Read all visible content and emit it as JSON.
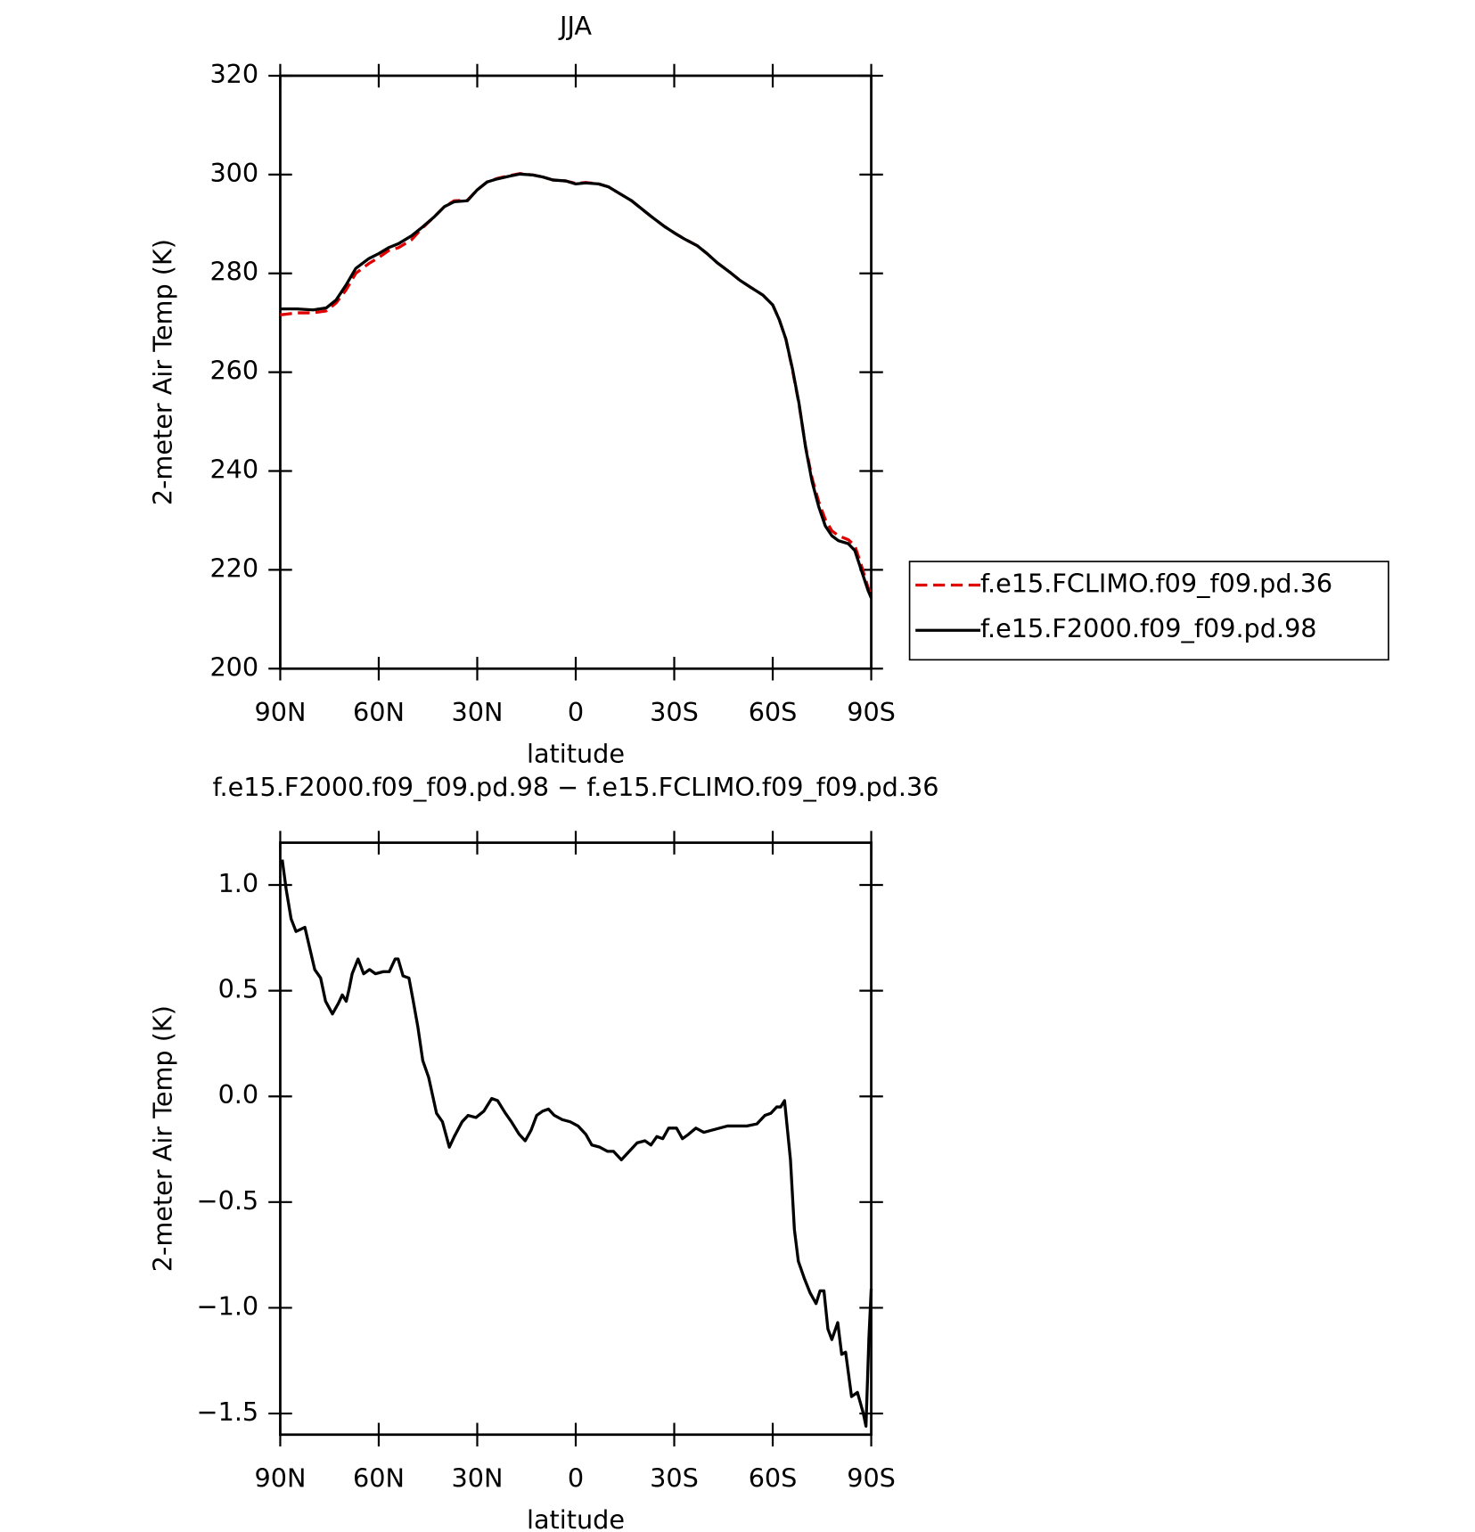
{
  "chart_data": [
    {
      "type": "line",
      "title": "JJA",
      "xlabel": "latitude",
      "ylabel": "2-meter Air Temp (K)",
      "xlim": [
        90,
        -90
      ],
      "xticks": [
        {
          "value": 90,
          "label": "90N"
        },
        {
          "value": 60,
          "label": "60N"
        },
        {
          "value": 30,
          "label": "30N"
        },
        0,
        {
          "value": -30,
          "label": "30S"
        },
        {
          "value": -60,
          "label": "60S"
        },
        {
          "value": -90,
          "label": "90S"
        }
      ],
      "ylim": [
        200,
        320
      ],
      "yticks": [
        200,
        220,
        240,
        260,
        280,
        300,
        320
      ],
      "legend": "right",
      "x": [
        90,
        85,
        80,
        76,
        73,
        70,
        67,
        63,
        60,
        57,
        54,
        50,
        47,
        43,
        40,
        37,
        33,
        30,
        27,
        24,
        20,
        17,
        13,
        10,
        7,
        3,
        0,
        -3,
        -7,
        -10,
        -13,
        -17,
        -20,
        -23,
        -27,
        -30,
        -33,
        -37,
        -40,
        -43,
        -47,
        -50,
        -53,
        -57,
        -60,
        -62,
        -64,
        -66,
        -68,
        -70,
        -72,
        -74,
        -76,
        -78,
        -80,
        -83,
        -85,
        -87,
        -89,
        -90
      ],
      "series": [
        {
          "name": "f.e15.FCLIMO.f09_f09.pd.36",
          "color": "#e00000",
          "dash": true,
          "values": [
            271.6,
            272,
            272,
            272.4,
            274,
            276.6,
            280,
            282,
            283.2,
            284.6,
            285.2,
            286.8,
            289,
            291.5,
            293.5,
            294.7,
            294.8,
            296.9,
            298.5,
            299.2,
            299.8,
            300.2,
            299.9,
            299.5,
            298.9,
            298.7,
            298.2,
            298.4,
            298.1,
            297.5,
            296.3,
            294.7,
            293.1,
            291.5,
            289.5,
            288.2,
            287,
            285.6,
            284,
            282.2,
            280.2,
            278.6,
            277.3,
            275.6,
            273.6,
            270.6,
            266.7,
            260.5,
            253.5,
            245,
            238.5,
            233.8,
            230.2,
            227.9,
            226.9,
            226.1,
            224.9,
            220.9,
            216.5,
            214.9
          ]
        },
        {
          "name": "f.e15.F2000.f09_f09.pd.98",
          "color": "#000000",
          "dash": false,
          "values": [
            272.8,
            272.8,
            272.6,
            273,
            274.6,
            277.6,
            281,
            283,
            284,
            285.2,
            286,
            287.6,
            289.2,
            291.5,
            293.5,
            294.5,
            294.7,
            296.9,
            298.5,
            299.1,
            299.7,
            300.1,
            299.9,
            299.5,
            298.9,
            298.7,
            298.1,
            298.3,
            298.1,
            297.5,
            296.3,
            294.7,
            293.1,
            291.5,
            289.5,
            288.2,
            287,
            285.6,
            284,
            282.2,
            280.2,
            278.6,
            277.3,
            275.6,
            273.6,
            270.6,
            266.7,
            260.7,
            253.7,
            244.8,
            237.8,
            232.8,
            228.9,
            226.9,
            225.9,
            225.3,
            223.9,
            219.9,
            215.9,
            214.3
          ]
        }
      ]
    },
    {
      "type": "line",
      "title": "f.e15.F2000.f09_f09.pd.98 − f.e15.FCLIMO.f09_f09.pd.36",
      "xlabel": "latitude",
      "ylabel": "2-meter Air Temp (K)",
      "xlim": [
        90,
        -90
      ],
      "xticks": [
        {
          "value": 90,
          "label": "90N"
        },
        {
          "value": 60,
          "label": "60N"
        },
        {
          "value": 30,
          "label": "30N"
        },
        0,
        {
          "value": -30,
          "label": "30S"
        },
        {
          "value": -60,
          "label": "60S"
        },
        {
          "value": -90,
          "label": "90S"
        }
      ],
      "ylim": [
        -1.6,
        1.2
      ],
      "yticks": [
        {
          "value": 1,
          "label": "1.0"
        },
        0.5,
        {
          "value": 0,
          "label": "0.0"
        },
        {
          "value": -0.5,
          "label": "−0.5"
        },
        {
          "value": -1,
          "label": "−1.0"
        },
        {
          "value": -1.5,
          "label": "−1.5"
        }
      ],
      "x": [
        89.4,
        88.2,
        86.7,
        85.2,
        82.5,
        79.5,
        77.7,
        76.2,
        74.1,
        72.3,
        71.1,
        69.9,
        69,
        68.1,
        66.3,
        64.6,
        62.8,
        61,
        58.6,
        56.8,
        55,
        54.1,
        52.6,
        50.8,
        49.6,
        48.1,
        46.6,
        44.8,
        42.4,
        40.6,
        38.5,
        37,
        34.6,
        32.8,
        30.4,
        28,
        25.6,
        23.8,
        21.4,
        19.6,
        17.2,
        15.4,
        13.6,
        11.9,
        10.1,
        8.3,
        6.5,
        4.1,
        1.7,
        -0.7,
        -3.1,
        -4.9,
        -7.3,
        -9.7,
        -11.5,
        -13.9,
        -16.3,
        -18.7,
        -21.1,
        -22.9,
        -24.7,
        -26.5,
        -28.3,
        -30.7,
        -32.5,
        -34.3,
        -36.6,
        -39,
        -41.4,
        -43.8,
        -46.2,
        -49.2,
        -52.2,
        -55.2,
        -57.6,
        -59.4,
        -61.2,
        -62.4,
        -63.6,
        -65.4,
        -66.6,
        -67.8,
        -69.6,
        -71.4,
        -73.2,
        -74.4,
        -75.6,
        -76.8,
        -78,
        -79.8,
        -81,
        -82.2,
        -84,
        -85.8,
        -87.6,
        -88.4,
        -89.3,
        -90
      ],
      "series": [
        {
          "color": "#000000",
          "dash": false,
          "values": [
            1.12,
            0.98,
            0.84,
            0.78,
            0.8,
            0.6,
            0.56,
            0.45,
            0.39,
            0.44,
            0.48,
            0.45,
            0.51,
            0.58,
            0.65,
            0.58,
            0.6,
            0.58,
            0.59,
            0.59,
            0.65,
            0.65,
            0.57,
            0.56,
            0.46,
            0.33,
            0.17,
            0.09,
            -0.08,
            -0.12,
            -0.24,
            -0.19,
            -0.12,
            -0.09,
            -0.1,
            -0.07,
            -0.01,
            -0.02,
            -0.08,
            -0.12,
            -0.18,
            -0.21,
            -0.16,
            -0.09,
            -0.07,
            -0.06,
            -0.09,
            -0.11,
            -0.12,
            -0.14,
            -0.18,
            -0.23,
            -0.24,
            -0.26,
            -0.26,
            -0.3,
            -0.26,
            -0.22,
            -0.21,
            -0.23,
            -0.19,
            -0.2,
            -0.15,
            -0.15,
            -0.2,
            -0.18,
            -0.15,
            -0.17,
            -0.16,
            -0.15,
            -0.14,
            -0.14,
            -0.14,
            -0.13,
            -0.09,
            -0.08,
            -0.05,
            -0.05,
            -0.02,
            -0.3,
            -0.63,
            -0.78,
            -0.86,
            -0.93,
            -0.98,
            -0.92,
            -0.92,
            -1.1,
            -1.15,
            -1.07,
            -1.22,
            -1.21,
            -1.42,
            -1.4,
            -1.5,
            -1.56,
            -1.14,
            -0.91
          ]
        }
      ]
    }
  ]
}
